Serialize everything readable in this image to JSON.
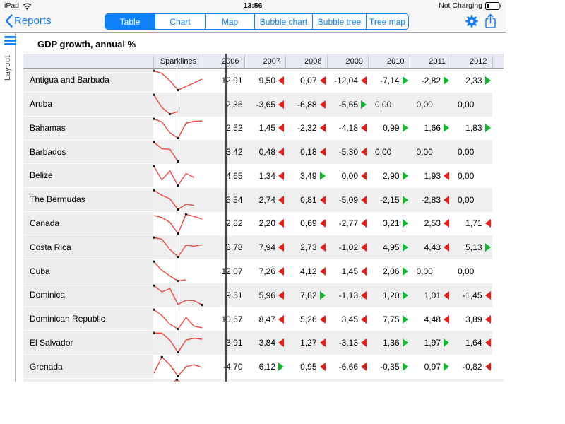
{
  "status_bar": {
    "device": "iPad",
    "time": "13:56",
    "battery_status": "Not Charging"
  },
  "toolbar": {
    "back_label": "Reports",
    "tabs": [
      {
        "label": "Table",
        "selected": true
      },
      {
        "label": "Chart",
        "selected": false
      },
      {
        "label": "Map",
        "selected": false
      },
      {
        "label": "Bubble chart",
        "selected": false
      },
      {
        "label": "Bubble tree",
        "selected": false
      },
      {
        "label": "Tree map",
        "selected": false
      }
    ]
  },
  "sidebar": {
    "label": "Layout"
  },
  "page": {
    "title": "GDP growth, annual %"
  },
  "table": {
    "columns": [
      "",
      "Sparklines",
      "2006",
      "2007",
      "2008",
      "2009",
      "2010",
      "2011",
      "2012"
    ],
    "rows": [
      {
        "country": "Antigua and Barbuda",
        "cells": [
          {
            "v": "12,91",
            "arrow": null
          },
          {
            "v": "9,50",
            "arrow": "down"
          },
          {
            "v": "0,07",
            "arrow": "down"
          },
          {
            "v": "-12,04",
            "arrow": "down"
          },
          {
            "v": "-7,14",
            "arrow": "up"
          },
          {
            "v": "-2,82",
            "arrow": "up"
          },
          {
            "v": "2,33",
            "arrow": "up"
          }
        ]
      },
      {
        "country": "Aruba",
        "cells": [
          {
            "v": "2,36",
            "arrow": null
          },
          {
            "v": "-3,65",
            "arrow": "down"
          },
          {
            "v": "-6,88",
            "arrow": "down"
          },
          {
            "v": "-5,65",
            "arrow": "up"
          },
          {
            "v": "0,00",
            "arrow": null
          },
          {
            "v": "0,00",
            "arrow": null
          },
          {
            "v": "0,00",
            "arrow": null
          }
        ]
      },
      {
        "country": "Bahamas",
        "cells": [
          {
            "v": "2,52",
            "arrow": null
          },
          {
            "v": "1,45",
            "arrow": "down"
          },
          {
            "v": "-2,32",
            "arrow": "down"
          },
          {
            "v": "-4,18",
            "arrow": "down"
          },
          {
            "v": "0,99",
            "arrow": "up"
          },
          {
            "v": "1,66",
            "arrow": "up"
          },
          {
            "v": "1,83",
            "arrow": "up"
          }
        ]
      },
      {
        "country": "Barbados",
        "cells": [
          {
            "v": "3,42",
            "arrow": null
          },
          {
            "v": "0,48",
            "arrow": "down"
          },
          {
            "v": "0,18",
            "arrow": "down"
          },
          {
            "v": "-5,30",
            "arrow": "down"
          },
          {
            "v": "0,00",
            "arrow": null
          },
          {
            "v": "0,00",
            "arrow": null
          },
          {
            "v": "0,00",
            "arrow": null
          }
        ]
      },
      {
        "country": "Belize",
        "cells": [
          {
            "v": "4,65",
            "arrow": null
          },
          {
            "v": "1,34",
            "arrow": "down"
          },
          {
            "v": "3,49",
            "arrow": "up"
          },
          {
            "v": "0,00",
            "arrow": "down"
          },
          {
            "v": "2,90",
            "arrow": "up"
          },
          {
            "v": "1,93",
            "arrow": "down"
          },
          {
            "v": "0,00",
            "arrow": null
          }
        ]
      },
      {
        "country": "The Bermudas",
        "cells": [
          {
            "v": "5,54",
            "arrow": null
          },
          {
            "v": "2,74",
            "arrow": "down"
          },
          {
            "v": "0,81",
            "arrow": "down"
          },
          {
            "v": "-5,09",
            "arrow": "down"
          },
          {
            "v": "-2,15",
            "arrow": "up"
          },
          {
            "v": "-2,83",
            "arrow": "down"
          },
          {
            "v": "0,00",
            "arrow": null
          }
        ]
      },
      {
        "country": "Canada",
        "cells": [
          {
            "v": "2,82",
            "arrow": null
          },
          {
            "v": "2,20",
            "arrow": "down"
          },
          {
            "v": "0,69",
            "arrow": "down"
          },
          {
            "v": "-2,77",
            "arrow": "down"
          },
          {
            "v": "3,21",
            "arrow": "up"
          },
          {
            "v": "2,53",
            "arrow": "down"
          },
          {
            "v": "1,71",
            "arrow": "down"
          }
        ]
      },
      {
        "country": "Costa Rica",
        "cells": [
          {
            "v": "8,78",
            "arrow": null
          },
          {
            "v": "7,94",
            "arrow": "down"
          },
          {
            "v": "2,73",
            "arrow": "down"
          },
          {
            "v": "-1,02",
            "arrow": "down"
          },
          {
            "v": "4,95",
            "arrow": "up"
          },
          {
            "v": "4,43",
            "arrow": "down"
          },
          {
            "v": "5,13",
            "arrow": "up"
          }
        ]
      },
      {
        "country": "Cuba",
        "cells": [
          {
            "v": "12,07",
            "arrow": null
          },
          {
            "v": "7,26",
            "arrow": "down"
          },
          {
            "v": "4,12",
            "arrow": "down"
          },
          {
            "v": "1,45",
            "arrow": "down"
          },
          {
            "v": "2,06",
            "arrow": "up"
          },
          {
            "v": "0,00",
            "arrow": null
          },
          {
            "v": "0,00",
            "arrow": null
          }
        ]
      },
      {
        "country": "Dominica",
        "cells": [
          {
            "v": "9,51",
            "arrow": null
          },
          {
            "v": "5,96",
            "arrow": "down"
          },
          {
            "v": "7,82",
            "arrow": "up"
          },
          {
            "v": "-1,13",
            "arrow": "down"
          },
          {
            "v": "1,20",
            "arrow": "up"
          },
          {
            "v": "1,01",
            "arrow": "down"
          },
          {
            "v": "-1,45",
            "arrow": "down"
          }
        ]
      },
      {
        "country": "Dominican Republic",
        "cells": [
          {
            "v": "10,67",
            "arrow": null
          },
          {
            "v": "8,47",
            "arrow": "down"
          },
          {
            "v": "5,26",
            "arrow": "down"
          },
          {
            "v": "3,45",
            "arrow": "down"
          },
          {
            "v": "7,75",
            "arrow": "up"
          },
          {
            "v": "4,48",
            "arrow": "down"
          },
          {
            "v": "3,89",
            "arrow": "down"
          }
        ]
      },
      {
        "country": "El Salvador",
        "cells": [
          {
            "v": "3,91",
            "arrow": null
          },
          {
            "v": "3,84",
            "arrow": "down"
          },
          {
            "v": "1,27",
            "arrow": "down"
          },
          {
            "v": "-3,13",
            "arrow": "down"
          },
          {
            "v": "1,36",
            "arrow": "up"
          },
          {
            "v": "1,97",
            "arrow": "up"
          },
          {
            "v": "1,64",
            "arrow": "down"
          }
        ]
      },
      {
        "country": "Grenada",
        "cells": [
          {
            "v": "-4,70",
            "arrow": null
          },
          {
            "v": "6,12",
            "arrow": "up"
          },
          {
            "v": "0,95",
            "arrow": "down"
          },
          {
            "v": "-6,66",
            "arrow": "down"
          },
          {
            "v": "-0,35",
            "arrow": "up"
          },
          {
            "v": "0,97",
            "arrow": "up"
          },
          {
            "v": "-0,82",
            "arrow": "down"
          }
        ]
      }
    ]
  },
  "colors": {
    "accent_blue": "#1080f8",
    "arrow_up_green": "#12b42e",
    "arrow_down_red": "#ed1c16",
    "sparkline_red": "#f4453c",
    "header_band": "#e8eaf3",
    "row_alt_gray": "#efefef",
    "country_gray": "#ededed"
  }
}
